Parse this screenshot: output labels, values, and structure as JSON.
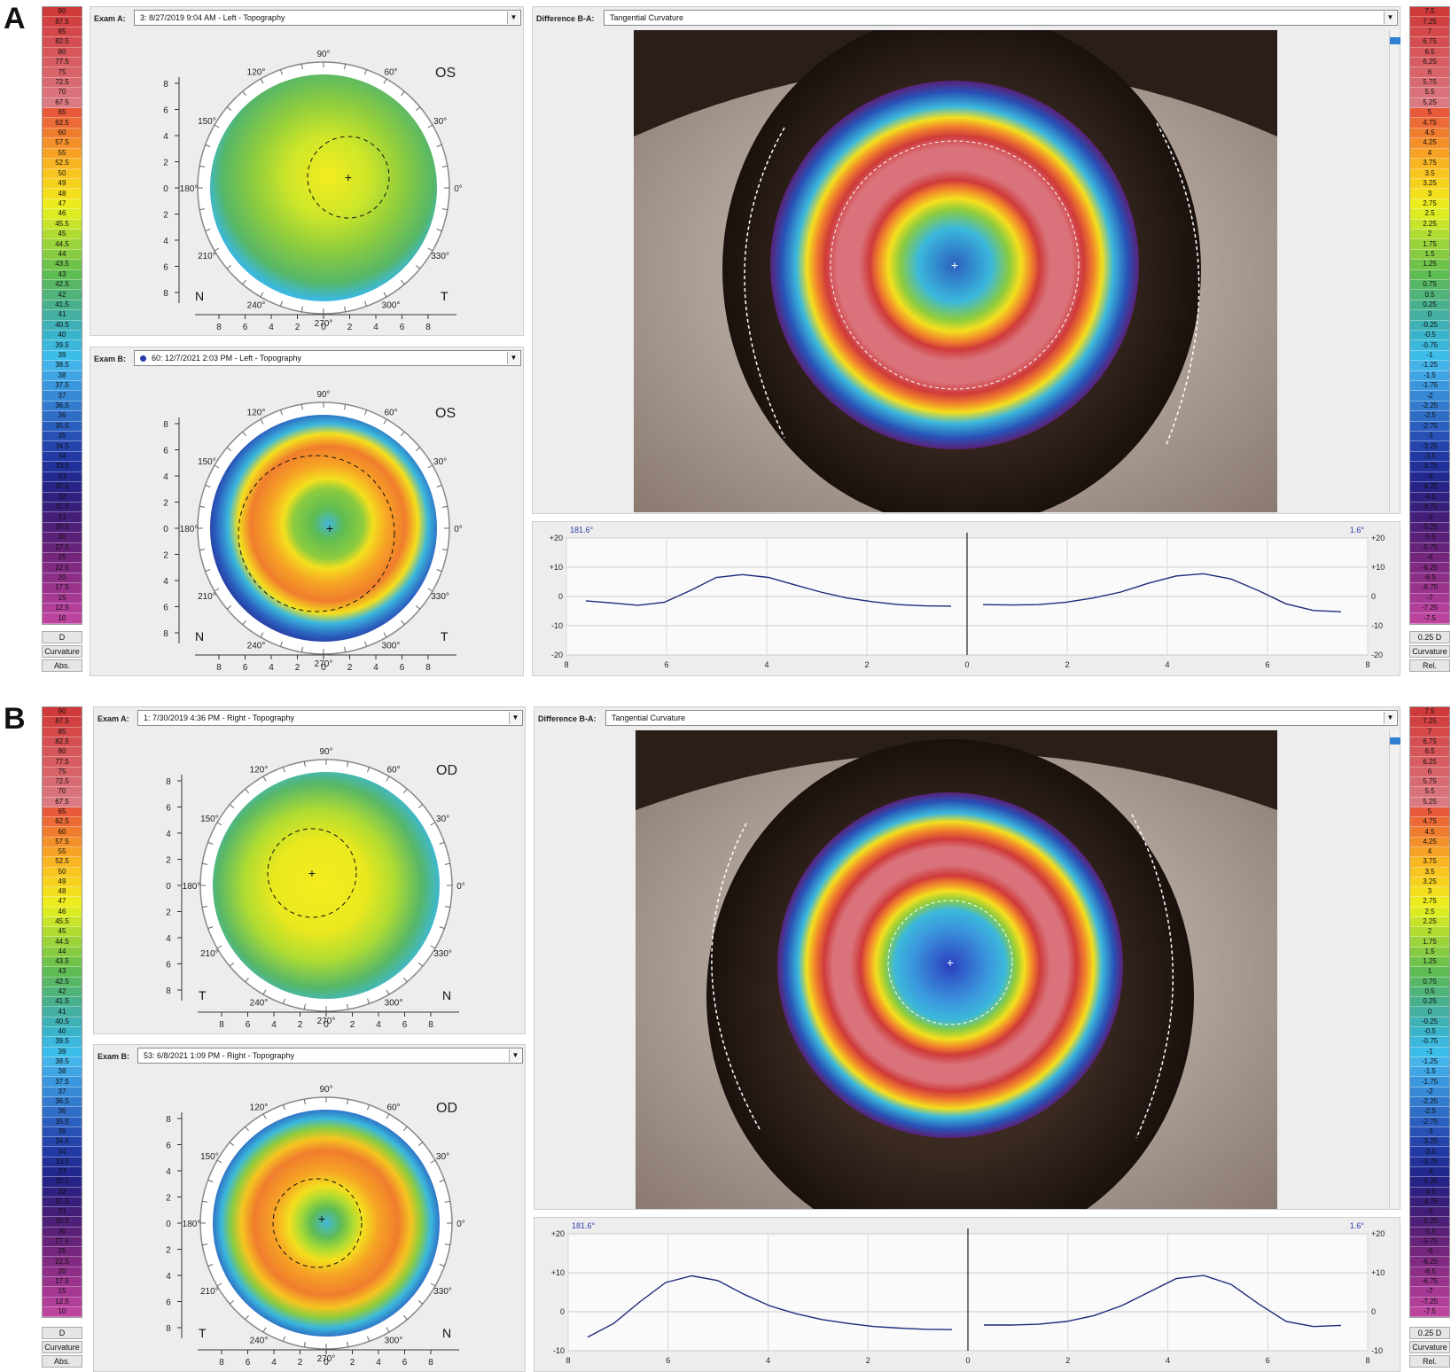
{
  "letters": [
    "A",
    "B"
  ],
  "abs_scale": [
    "90",
    "87.5",
    "85",
    "82.5",
    "80",
    "77.5",
    "75",
    "72.5",
    "70",
    "67.5",
    "65",
    "62.5",
    "60",
    "57.5",
    "55",
    "52.5",
    "50",
    "49",
    "48",
    "47",
    "46",
    "45.5",
    "45",
    "44.5",
    "44",
    "43.5",
    "43",
    "42.5",
    "42",
    "41.5",
    "41",
    "40.5",
    "40",
    "39.5",
    "39",
    "38.5",
    "38",
    "37.5",
    "37",
    "36.5",
    "36",
    "35.5",
    "35",
    "34.5",
    "34",
    "33.5",
    "33",
    "32.5",
    "32",
    "31.5",
    "31",
    "30.5",
    "30",
    "27.5",
    "25",
    "22.5",
    "20",
    "17.5",
    "15",
    "12.5",
    "10"
  ],
  "rel_scale": [
    "7.5",
    "7.25",
    "7",
    "6.75",
    "6.5",
    "6.25",
    "6",
    "5.75",
    "5.5",
    "5.25",
    "5",
    "4.75",
    "4.5",
    "4.25",
    "4",
    "3.75",
    "3.5",
    "3.25",
    "3",
    "2.75",
    "2.5",
    "2.25",
    "2",
    "1.75",
    "1.5",
    "1.25",
    "1",
    "0.75",
    "0.5",
    "0.25",
    "0",
    "-0.25",
    "-0.5",
    "-0.75",
    "-1",
    "-1.25",
    "-1.5",
    "-1.75",
    "-2",
    "-2.25",
    "-2.5",
    "-2.75",
    "-3",
    "-3.25",
    "-3.5",
    "-3.75",
    "-4",
    "-4.25",
    "-4.5",
    "-4.75",
    "-5",
    "-5.25",
    "-5.5",
    "-5.75",
    "-6",
    "-6.25",
    "-6.5",
    "-6.75",
    "-7",
    "-7.25",
    "-7.5"
  ],
  "colors": {
    "abs": [
      "#cf3a3a",
      "#d24141",
      "#d4484a",
      "#d54f52",
      "#d6565a",
      "#d75d62",
      "#d8646a",
      "#d86b72",
      "#d9727a",
      "#da7a82",
      "#e8593a",
      "#ec6a34",
      "#f07d2d",
      "#f39029",
      "#f6a325",
      "#f8b623",
      "#f8c521",
      "#f6d21f",
      "#f4df1e",
      "#eceb1d",
      "#dcec22",
      "#c6e42a",
      "#b0dc32",
      "#9bd33a",
      "#86cb42",
      "#70c34a",
      "#5ebc55",
      "#57b767",
      "#50b37a",
      "#49b08e",
      "#44b0a2",
      "#3eb1b6",
      "#3ab4cb",
      "#3bb8dc",
      "#3cbce8",
      "#43b3ea",
      "#3fa5e4",
      "#3b97dd",
      "#3789d6",
      "#337bcf",
      "#2f6dc7",
      "#2b5fbf",
      "#2851b6",
      "#2545ad",
      "#233aa4",
      "#22309a",
      "#23288f",
      "#282487",
      "#302181",
      "#391f7c",
      "#441f7a",
      "#4f2079",
      "#5b2179",
      "#67237a",
      "#74267d",
      "#802a81",
      "#8c2e86",
      "#99338c",
      "#a53892",
      "#b13e98",
      "#bc449e"
    ]
  },
  "panelA": {
    "examA": {
      "label": "Exam A:",
      "value": "3: 8/27/2019 9:04 AM - Left - Topography",
      "eye": "OS",
      "left": "N",
      "right": "T",
      "dot": false
    },
    "examB": {
      "label": "Exam B:",
      "value": "60: 12/7/2021 2:03 PM - Left - Topography",
      "eye": "OS",
      "left": "N",
      "right": "T",
      "dot": true
    },
    "diff": {
      "label": "Difference B-A:",
      "value": "Tangential Curvature"
    },
    "btns_left": [
      "D",
      "Curvature",
      "Abs."
    ],
    "btns_right": [
      "0.25 D",
      "Curvature",
      "Rel."
    ],
    "graph": {
      "left_angle": "181.6°",
      "right_angle": "1.6°",
      "y_left": [
        -1.5,
        -2.2,
        -3.0,
        -2.0,
        2.0,
        6.5,
        7.5,
        6.5,
        4.0,
        1.5,
        -0.5,
        -1.8,
        -2.8,
        -3.2,
        -3.3
      ],
      "y_right": [
        -2.8,
        -2.9,
        -2.8,
        -2.0,
        -0.5,
        1.5,
        4.5,
        7.0,
        7.8,
        6.0,
        2.0,
        -2.5,
        -4.8,
        -5.2
      ]
    }
  },
  "panelB": {
    "examA": {
      "label": "Exam A:",
      "value": "1: 7/30/2019 4:36 PM - Right - Topography",
      "eye": "OD",
      "left": "T",
      "right": "N",
      "dot": false
    },
    "examB": {
      "label": "Exam B:",
      "value": "53: 6/8/2021 1:09 PM - Right - Topography",
      "eye": "OD",
      "left": "T",
      "right": "N",
      "dot": false
    },
    "diff": {
      "label": "Difference B-A:",
      "value": "Tangential Curvature"
    },
    "btns_left": [
      "D",
      "Curvature",
      "Abs."
    ],
    "btns_right": [
      "0.25 D",
      "Curvature",
      "Rel."
    ],
    "graph": {
      "left_angle": "181.6°",
      "right_angle": "1.6°",
      "y_left": [
        -6.5,
        -3.0,
        2.5,
        7.5,
        9.2,
        8.0,
        4.5,
        1.5,
        -0.5,
        -2.0,
        -3.0,
        -3.8,
        -4.2,
        -4.5,
        -4.6
      ],
      "y_right": [
        -3.4,
        -3.4,
        -3.2,
        -2.5,
        -1.0,
        1.5,
        5.0,
        8.5,
        9.3,
        7.0,
        2.0,
        -2.5,
        -3.8,
        -3.5
      ]
    }
  },
  "map_labels": {
    "deg90": "90°",
    "deg60": "60°",
    "deg30": "30°",
    "deg0": "0°",
    "deg120": "120°",
    "deg150": "150°",
    "deg180": "180°",
    "deg210": "210°",
    "deg240": "240°",
    "deg270": "270°",
    "deg300": "300°",
    "deg330": "330°",
    "yticks": [
      "8",
      "6",
      "4",
      "2",
      "0",
      "2",
      "4",
      "6",
      "8"
    ],
    "xticks": [
      "8",
      "6",
      "4",
      "2",
      "0",
      "2",
      "4",
      "6",
      "8"
    ]
  },
  "graph_axis": {
    "yA": [
      "+20",
      "+10",
      "0",
      "-10",
      "-20"
    ],
    "yB": [
      "+20",
      "+10",
      "0",
      "-10"
    ],
    "x": [
      "8",
      "6",
      "4",
      "2",
      "0",
      "2",
      "4",
      "6",
      "8"
    ]
  }
}
